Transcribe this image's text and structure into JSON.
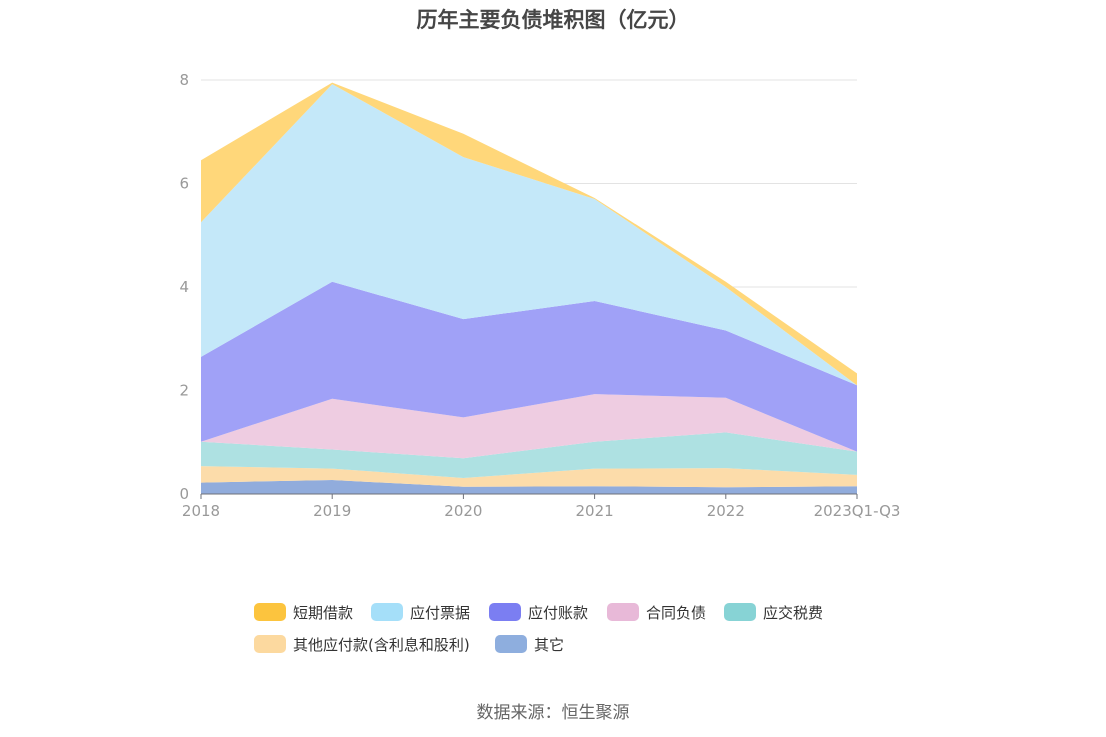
{
  "chart_data": {
    "type": "area",
    "stacked": true,
    "title": "历年主要负债堆积图（亿元）",
    "categories": [
      "2018",
      "2019",
      "2020",
      "2021",
      "2022",
      "2023Q1-Q3"
    ],
    "ylim": [
      0,
      8
    ],
    "yticks": [
      "0",
      "2",
      "4",
      "6",
      "8"
    ],
    "grid": true,
    "legend_position": "bottom",
    "series": [
      {
        "name": "其它",
        "color": "#91acdc",
        "values": [
          0.22,
          0.27,
          0.14,
          0.15,
          0.13,
          0.15
        ]
      },
      {
        "name": "其他应付款(含利息和股利)",
        "color": "#fcdcaa",
        "values": [
          0.32,
          0.22,
          0.17,
          0.34,
          0.37,
          0.22
        ]
      },
      {
        "name": "应交税费",
        "color": "#aee1e2",
        "values": [
          0.47,
          0.37,
          0.38,
          0.52,
          0.69,
          0.45
        ]
      },
      {
        "name": "合同负债",
        "color": "#eecce1",
        "values": [
          0.0,
          0.98,
          0.79,
          0.92,
          0.67,
          0.0
        ]
      },
      {
        "name": "应付账款",
        "color": "#a0a1f7",
        "values": [
          1.64,
          2.26,
          1.9,
          1.8,
          1.3,
          1.28
        ]
      },
      {
        "name": "应付票据",
        "color": "#c4e8f9",
        "values": [
          2.6,
          3.82,
          3.13,
          1.97,
          0.84,
          0.0
        ]
      },
      {
        "name": "短期借款",
        "color": "#ffd77a",
        "values": [
          1.2,
          0.03,
          0.45,
          0.02,
          0.1,
          0.23
        ]
      }
    ],
    "legend_order": [
      "短期借款",
      "应付票据",
      "应付账款",
      "合同负债",
      "应交税费",
      "其他应付款(含利息和股利)",
      "其它"
    ]
  },
  "legend": [
    {
      "label": "短期借款",
      "color": "#fcc43e"
    },
    {
      "label": "应付票据",
      "color": "#a5dff9"
    },
    {
      "label": "应付账款",
      "color": "#7b7ef2"
    },
    {
      "label": "合同负债",
      "color": "#e8b9d8"
    },
    {
      "label": "应交税费",
      "color": "#87d3d5"
    },
    {
      "label": "其他应付款(含利息和股利)",
      "color": "#fcd99f"
    },
    {
      "label": "其它",
      "color": "#8eaede"
    }
  ],
  "source": "数据来源：恒生聚源"
}
